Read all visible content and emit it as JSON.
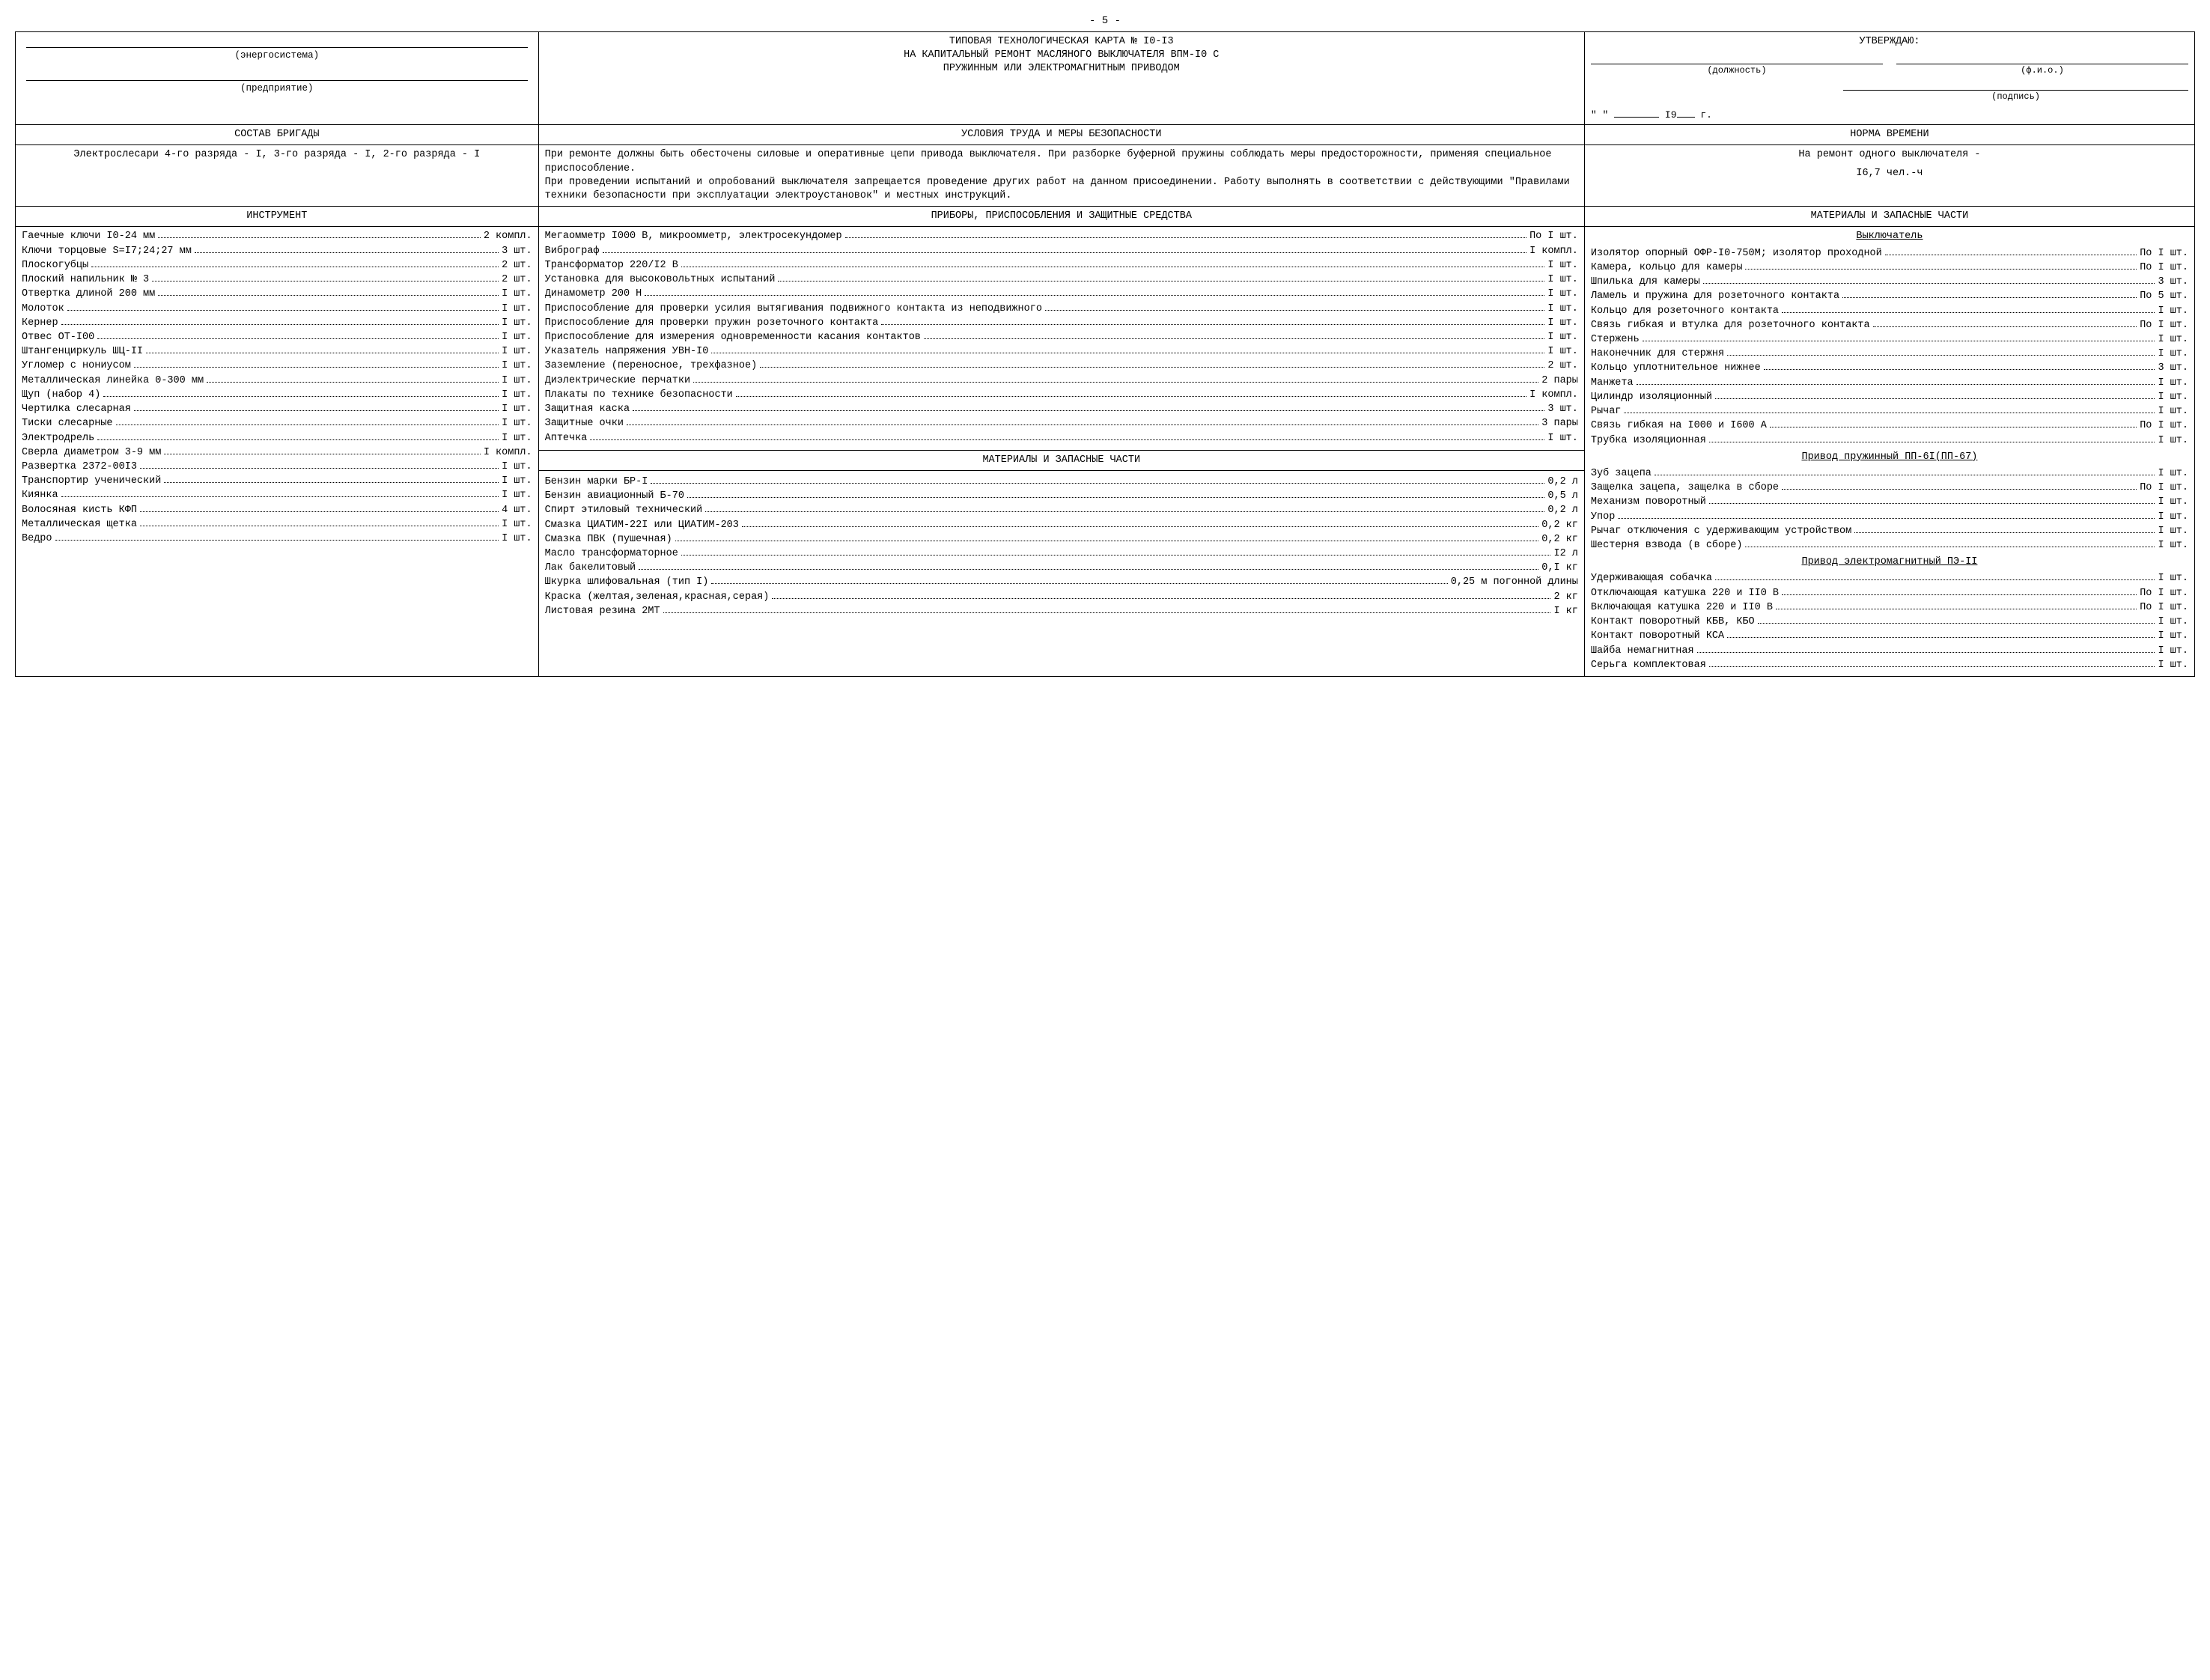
{
  "page_number": "- 5 -",
  "header": {
    "left": {
      "line1_caption": "(энергосистема)",
      "line2_caption": "(предприятие)"
    },
    "title_line1": "ТИПОВАЯ ТЕХНОЛОГИЧЕСКАЯ КАРТА № I0-I3",
    "title_line2": "НА КАПИТАЛЬНЫЙ РЕМОНТ МАСЛЯНОГО ВЫКЛЮЧАТЕЛЯ ВПМ-I0 С",
    "title_line3": "ПРУЖИННЫМ ИЛИ ЭЛЕКТРОМАГНИТНЫМ ПРИВОДОМ",
    "approve": {
      "title": "УТВЕРЖДАЮ:",
      "slot1": "(должность)",
      "slot2": "(ф.и.о.)",
      "slot3": "(подпись)",
      "date_prefix": "\"    \"",
      "date_year_prefix": "I9",
      "date_suffix": "г."
    }
  },
  "row2": {
    "brigade_title": "СОСТАВ БРИГАДЫ",
    "conditions_title": "УСЛОВИЯ ТРУДА И МЕРЫ БЕЗОПАСНОСТИ",
    "norma_title": "НОРМА ВРЕМЕНИ"
  },
  "brigade_text": "Электрослесари 4-го разряда - I, 3-го разряда - I, 2-го разря­да - I",
  "conditions_text": "При ремонте должны быть обесточены силовые и оперативные цепи привода выключателя. При разборке буферной пружины соблюдать меры предосторожности, применяя специальное приспособление.\nПри проведении испытаний и опробований выключателя запрещается проведение других ра­бот на данном присоединении. Работу выполнять в соответствии с действующими \"Правилами техники безопасности при эксплуатации электроустановок\" и местных инструкций.",
  "norma_text1": "На ремонт одного выключателя -",
  "norma_text2": "I6,7 чел.-ч",
  "col_titles": {
    "c1": "ИНСТРУМЕНТ",
    "c2": "ПРИБОРЫ, ПРИСПОСОБЛЕНИЯ И ЗАЩИТНЫЕ СРЕДСТВА",
    "c3": "МАТЕРИАЛЫ И ЗАПАСНЫЕ ЧАСТИ"
  },
  "instruments": [
    {
      "l": "Гаечные ключи I0-24 мм",
      "q": "2 компл."
    },
    {
      "l": "Ключи торцовые S=I7;24;27 мм",
      "q": "3 шт."
    },
    {
      "l": "Плоскогубцы",
      "q": "2 шт."
    },
    {
      "l": "Плоский напильник № 3",
      "q": "2 шт."
    },
    {
      "l": "Отвертка длиной 200 мм",
      "q": "I шт."
    },
    {
      "l": "Молоток",
      "q": "I шт."
    },
    {
      "l": "Кернер",
      "q": "I шт."
    },
    {
      "l": "Отвес ОТ-I00",
      "q": "I шт."
    },
    {
      "l": "Штангенциркуль ШЦ-II",
      "q": "I шт."
    },
    {
      "l": "Угломер с нониусом",
      "q": "I шт."
    },
    {
      "l": "Металлическая линейка 0-300 мм",
      "q": "I шт."
    },
    {
      "l": "Щуп (набор 4)",
      "q": "I шт."
    },
    {
      "l": "Чертилка слесарная",
      "q": "I шт."
    },
    {
      "l": "Тиски слесарные",
      "q": "I шт."
    },
    {
      "l": "Электродрель",
      "q": "I шт."
    },
    {
      "l": "Сверла диаметром 3-9 мм",
      "q": "I компл."
    },
    {
      "l": "Развертка 2372-00I3",
      "q": "I шт."
    },
    {
      "l": "Транспортир ученический",
      "q": "I шт."
    },
    {
      "l": "Киянка",
      "q": "I шт."
    },
    {
      "l": "Волосяная кисть КФП",
      "q": "4 шт."
    },
    {
      "l": "Металлическая щетка",
      "q": "I шт."
    },
    {
      "l": "Ведро",
      "q": "I шт."
    }
  ],
  "devices": [
    {
      "l": "Мегаомметр I000 В, микроомметр, элект­росекундомер",
      "q": "По I шт."
    },
    {
      "l": "Виброграф",
      "q": "I компл."
    },
    {
      "l": "Трансформатор 220/I2 В",
      "q": "I шт."
    },
    {
      "l": "Установка для высоковольтных испытаний",
      "q": "I шт."
    },
    {
      "l": "Динамометр 200 Н",
      "q": "I шт."
    },
    {
      "l": "Приспособление для проверки усилия вы­тягивания подвижного контакта из не­подвижного",
      "q": "I шт."
    },
    {
      "l": "Приспособление для проверки пружин ро­зеточного контакта",
      "q": "I шт."
    },
    {
      "l": "Приспособление для измерения одновре­менности касания контактов",
      "q": "I шт."
    },
    {
      "l": "Указатель напряжения УВН-I0",
      "q": "I шт."
    },
    {
      "l": "Заземление (переносное, трехфазное)",
      "q": "2 шт."
    },
    {
      "l": "Диэлектрические перчатки",
      "q": "2 пары"
    },
    {
      "l": "Плакаты по технике безопасности",
      "q": "I компл."
    },
    {
      "l": "Защитная каска",
      "q": "3 шт."
    },
    {
      "l": "Защитные очки",
      "q": "3 пары"
    },
    {
      "l": "Аптечка",
      "q": "I шт."
    }
  ],
  "mid_header": "МАТЕРИАЛЫ И ЗАПАСНЫЕ ЧАСТИ",
  "materials_mid": [
    {
      "l": "Бензин марки БР-I",
      "q": "0,2 л"
    },
    {
      "l": "Бензин авиационный Б-70",
      "q": "0,5 л"
    },
    {
      "l": "Спирт этиловый технический",
      "q": "0,2 л"
    },
    {
      "l": "Смазка ЦИАТИМ-22I или ЦИАТИМ-203",
      "q": "0,2 кг"
    },
    {
      "l": "Смазка ПВК (пушечная)",
      "q": "0,2 кг"
    },
    {
      "l": "Масло трансформаторное",
      "q": "I2 л"
    },
    {
      "l": "Лак бакелитовый",
      "q": "0,I кг"
    },
    {
      "l": "Шкурка шлифовальная (тип I)",
      "q": "0,25 м погонной длины"
    },
    {
      "l": "Краска (желтая,зеленая,красная,серая)",
      "q": "2 кг"
    },
    {
      "l": "Листовая резина 2МТ",
      "q": "I кг"
    }
  ],
  "right_sub1": "Выключатель",
  "right_group1": [
    {
      "l": "Изолятор опорный ОФР-I0-750М; изолятор проходной",
      "q": "По I шт."
    },
    {
      "l": "Камера, кольцо для камеры",
      "q": "По I шт."
    },
    {
      "l": "Шпилька для камеры",
      "q": "3 шт."
    },
    {
      "l": "Ламель и пружина для розеточного контакта",
      "q": "По 5 шт."
    },
    {
      "l": "Кольцо для розеточного контакта",
      "q": "I шт."
    },
    {
      "l": "Связь гибкая и втулка для розеточного контакта",
      "q": "По I шт."
    },
    {
      "l": "Стержень",
      "q": "I шт."
    },
    {
      "l": "Наконечник для стержня",
      "q": "I шт."
    },
    {
      "l": "Кольцо уплотнительное нижнее",
      "q": "3 шт."
    },
    {
      "l": "Манжета",
      "q": "I шт."
    },
    {
      "l": "Цилиндр изоляционный",
      "q": "I шт."
    },
    {
      "l": "Рычаг",
      "q": "I шт."
    },
    {
      "l": "Связь гибкая на I000 и I600 А",
      "q": "По I шт."
    },
    {
      "l": "Трубка изоляционная",
      "q": "I шт."
    }
  ],
  "right_sub2": "Привод пружинный ПП-6I(ПП-67)",
  "right_group2": [
    {
      "l": "Зуб зацепа",
      "q": "I шт."
    },
    {
      "l": "Защелка зацепа, защелка в сборе",
      "q": "По I шт."
    },
    {
      "l": "Механизм поворотный",
      "q": "I шт."
    },
    {
      "l": "Упор",
      "q": "I шт."
    },
    {
      "l": "Рычаг отключения с удерживающим устрой­ством",
      "q": "I шт."
    },
    {
      "l": "Шестерня взвода (в сборе)",
      "q": "I шт."
    }
  ],
  "right_sub3": "Привод электромагнитный ПЭ-II",
  "right_group3": [
    {
      "l": "Удерживающая собачка",
      "q": "I шт."
    },
    {
      "l": "Отключающая катушка  220 и II0 В",
      "q": "По I шт."
    },
    {
      "l": "Включающая катушка 220 и II0 В",
      "q": "По I шт."
    },
    {
      "l": "Контакт поворотный КБВ, КБО",
      "q": "I шт."
    },
    {
      "l": "Контакт поворотный КСА",
      "q": "I шт."
    },
    {
      "l": "Шайба немагнитная",
      "q": "I шт."
    },
    {
      "l": "Серьга комплектовая",
      "q": "I шт."
    }
  ]
}
